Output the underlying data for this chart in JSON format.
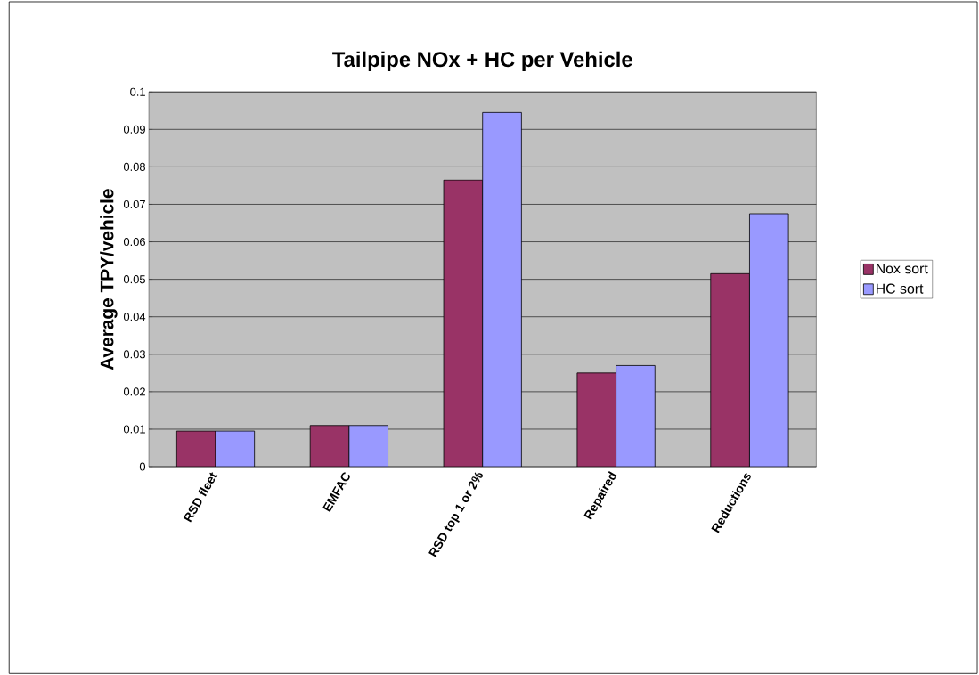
{
  "chart_data": {
    "type": "bar",
    "title": "Tailpipe NOx + HC per Vehicle",
    "ylabel": "Average TPY/vehicle",
    "categories": [
      "RSD fleet",
      "EMFAC",
      "RSD top 1 or 2%",
      "Repaired",
      "Reductions"
    ],
    "series": [
      {
        "name": "Nox sort",
        "color": "#993366",
        "values": [
          0.0095,
          0.011,
          0.0765,
          0.025,
          0.0515
        ]
      },
      {
        "name": "HC sort",
        "color": "#9999ff",
        "values": [
          0.0095,
          0.011,
          0.0945,
          0.027,
          0.0675
        ]
      }
    ],
    "ylim": [
      0,
      0.1
    ],
    "yticks": [
      0,
      0.01,
      0.02,
      0.03,
      0.04,
      0.05,
      0.06,
      0.07,
      0.08,
      0.09,
      0.1
    ],
    "grid": "y",
    "legend": "right"
  }
}
